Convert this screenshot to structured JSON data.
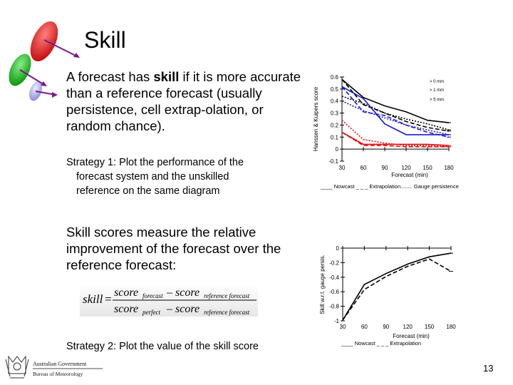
{
  "slide": {
    "title": "Skill",
    "intro_part1": "A forecast has ",
    "intro_bold": "skill",
    "intro_part2": " if it is more accurate than a reference forecast (usually persistence, cell extrap-olation, or random chance).",
    "strategy1_line1": "Strategy 1:  Plot the performance of the",
    "strategy1_line2": "forecast system and the unskilled",
    "strategy1_line3": "reference on the same diagram",
    "skill_desc": "Skill scores measure the relative improvement of the forecast over the reference forecast:",
    "strategy2": "Strategy 2:  Plot the value of the skill score",
    "page_number": "13"
  },
  "formula": {
    "lhs": "skill",
    "eq": "=",
    "num_score": "score",
    "num_sub1": "forecast",
    "num_minus": "–",
    "num_score2": "score",
    "num_sub2": "reference forecast",
    "den_score": "score",
    "den_sub1": "perfect",
    "den_minus": "–",
    "den_score2": "score",
    "den_sub2": "reference forecast"
  },
  "logo": {
    "line1": "Australian Government",
    "line2": "Bureau of Meteorology"
  },
  "colors": {
    "black_series": "#000000",
    "blue_series": "#1a1acc",
    "red_series": "#e01010",
    "ball_red": "#e02020",
    "ball_green": "#22bb22",
    "ball_lavender": "#b8b8ee",
    "arrow_purple": "#7a1a8a"
  },
  "chart_data": [
    {
      "type": "line",
      "ylabel": "Hanssen & Kuipers score",
      "xlabel": "Forecast (min)",
      "x": [
        30,
        60,
        90,
        120,
        150,
        180
      ],
      "ylim": [
        -0.1,
        0.6
      ],
      "yticks": [
        "0.6",
        "0.5",
        "0.4",
        "0.3",
        "0.2",
        "0.1",
        "0",
        "-0.1"
      ],
      "xticks": [
        "30",
        "60",
        "90",
        "120",
        "150",
        "180"
      ],
      "threshold_labels": [
        "> 0 mm",
        "> 1 mm",
        "> 5 mm"
      ],
      "legend": "____ Nowcast   _ _ _ Extrapolation........ Gauge persistence",
      "series": [
        {
          "name": "Nowcast > 0 mm",
          "color": "black",
          "dash": "solid",
          "values": [
            0.58,
            0.43,
            0.36,
            0.31,
            0.24,
            0.22
          ]
        },
        {
          "name": "Extrapolation > 0 mm",
          "color": "black",
          "dash": "dashed",
          "values": [
            0.58,
            0.37,
            0.3,
            0.23,
            0.18,
            0.15
          ]
        },
        {
          "name": "Gauge persistence > 0 mm",
          "color": "black",
          "dash": "dotted",
          "values": [
            0.44,
            0.38,
            0.3,
            0.25,
            0.21,
            0.16
          ]
        },
        {
          "name": "Nowcast > 1 mm",
          "color": "blue",
          "dash": "solid",
          "values": [
            0.52,
            0.42,
            0.21,
            0.12,
            0.12,
            0.12
          ]
        },
        {
          "name": "Extrapolation > 1 mm",
          "color": "blue",
          "dash": "dashed",
          "values": [
            0.52,
            0.31,
            0.28,
            0.2,
            0.14,
            0.1
          ]
        },
        {
          "name": "Gauge persistence > 1 mm",
          "color": "blue",
          "dash": "dotted",
          "values": [
            0.4,
            0.32,
            0.26,
            0.2,
            0.16,
            0.12
          ]
        },
        {
          "name": "Nowcast > 5 mm",
          "color": "red",
          "dash": "solid",
          "values": [
            0.14,
            0.04,
            0.04,
            0.04,
            0.04,
            0.03
          ]
        },
        {
          "name": "Extrapolation > 5 mm",
          "color": "red",
          "dash": "dashed",
          "values": [
            0.14,
            0.03,
            0.03,
            0.02,
            0.02,
            0.02
          ]
        },
        {
          "name": "Gauge persistence > 5 mm",
          "color": "red",
          "dash": "dotted",
          "values": [
            0.24,
            0.08,
            0.05,
            0.03,
            0.03,
            0.02
          ]
        }
      ]
    },
    {
      "type": "line",
      "ylabel": "Skill w.r.t. gauge persis.",
      "xlabel": "Forecast (min)",
      "x": [
        30,
        60,
        90,
        120,
        150,
        180
      ],
      "ylim": [
        -1,
        0
      ],
      "yticks": [
        "0",
        "-0.2",
        "-0.4",
        "-0.6",
        "-0.8",
        "-1"
      ],
      "xticks": [
        "30",
        "60",
        "90",
        "120",
        "150",
        "180"
      ],
      "legend": "____ Nowcast   _ _ _ Extrapolation",
      "series": [
        {
          "name": "Nowcast",
          "color": "black",
          "dash": "solid",
          "values": [
            -0.99,
            -0.5,
            -0.35,
            -0.22,
            -0.12,
            -0.07
          ]
        },
        {
          "name": "Extrapolation",
          "color": "black",
          "dash": "dashed",
          "values": [
            -0.99,
            -0.57,
            -0.39,
            -0.25,
            -0.15,
            -0.32
          ]
        }
      ]
    }
  ]
}
